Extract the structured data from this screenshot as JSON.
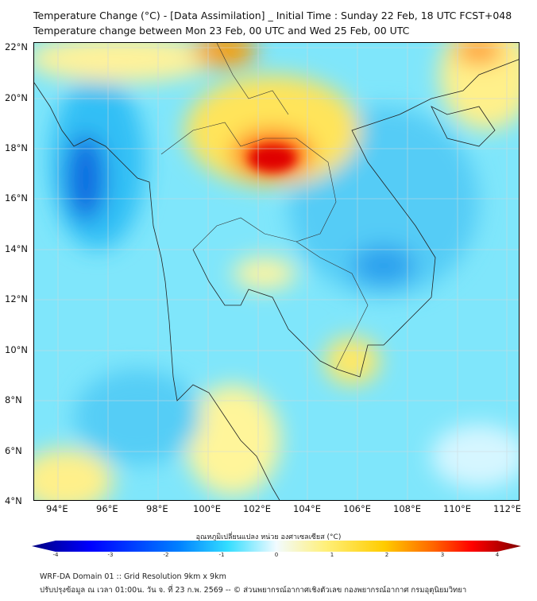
{
  "title": {
    "line1": "Temperature Change (°C) - [Data Assimilation] _ Initial Time : Sunday 22 Feb, 18 UTC FCST+048",
    "line2": "Temperature change between Mon 23 Feb, 00 UTC and Wed 25 Feb, 00 UTC"
  },
  "map": {
    "lat_labels": [
      "22°N",
      "20°N",
      "18°N",
      "16°N",
      "14°N",
      "12°N",
      "10°N",
      "8°N",
      "6°N",
      "4°N"
    ],
    "lon_labels": [
      "94°E",
      "96°E",
      "98°E",
      "100°E",
      "102°E",
      "104°E",
      "106°E",
      "108°E",
      "110°E",
      "112°E"
    ]
  },
  "colorbar": {
    "label": "อุณหภูมิเปลี่ยนแปลง หน่วย องศาเซลเซียส (°C)",
    "ticks": [
      "-4",
      "-3",
      "-2",
      "-1",
      "0",
      "1",
      "2",
      "3",
      "4"
    ],
    "colors": [
      "#00007f",
      "#0000ff",
      "#0080ff",
      "#33ddff",
      "#e8fbff",
      "#fff07a",
      "#ffcc00",
      "#ff6600",
      "#ff0000",
      "#7f0000"
    ]
  },
  "footer": {
    "line1": "WRF-DA Domain 01 :: Grid Resolution 9km x 9km",
    "line2": "ปรับปรุงข้อมูล ณ เวลา 01:00น. วัน จ. ที่ 23 ก.พ. 2569 -- © ส่วนพยากรณ์อากาศเชิงตัวเลข กองพยากรณ์อากาศ กรมอุตุนิยมวิทยา"
  }
}
